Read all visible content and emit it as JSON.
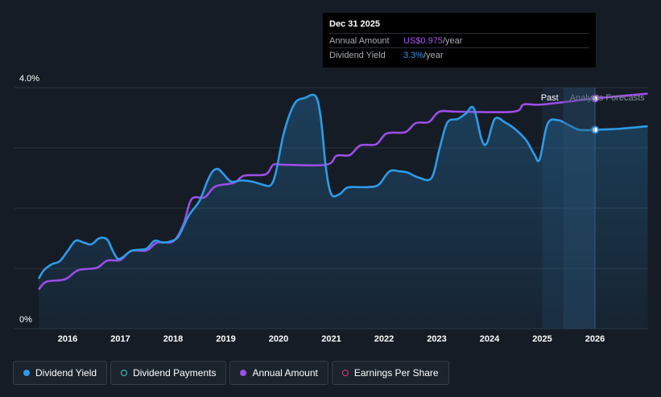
{
  "chart_data": {
    "type": "line",
    "ylim": [
      0,
      4.0
    ],
    "y_ticks": [
      "0%",
      "4.0%"
    ],
    "x_ticks": [
      "2016",
      "2017",
      "2018",
      "2019",
      "2020",
      "2021",
      "2022",
      "2023",
      "2024",
      "2025",
      "2026"
    ],
    "forecast_start": 2025.4,
    "region_labels": {
      "past": "Past",
      "forecast": "Analysts Forecasts"
    },
    "series": [
      {
        "name": "Dividend Yield",
        "color": "#2e9be8",
        "points": [
          [
            2015.45,
            0.83
          ],
          [
            2015.55,
            0.97
          ],
          [
            2015.7,
            1.07
          ],
          [
            2015.85,
            1.12
          ],
          [
            2016.0,
            1.29
          ],
          [
            2016.15,
            1.46
          ],
          [
            2016.3,
            1.43
          ],
          [
            2016.45,
            1.4
          ],
          [
            2016.6,
            1.5
          ],
          [
            2016.75,
            1.48
          ],
          [
            2016.85,
            1.3
          ],
          [
            2016.95,
            1.16
          ],
          [
            2017.05,
            1.19
          ],
          [
            2017.2,
            1.29
          ],
          [
            2017.35,
            1.31
          ],
          [
            2017.5,
            1.33
          ],
          [
            2017.65,
            1.46
          ],
          [
            2017.8,
            1.43
          ],
          [
            2017.95,
            1.45
          ],
          [
            2018.1,
            1.53
          ],
          [
            2018.3,
            1.88
          ],
          [
            2018.5,
            2.12
          ],
          [
            2018.65,
            2.45
          ],
          [
            2018.75,
            2.61
          ],
          [
            2018.85,
            2.65
          ],
          [
            2018.95,
            2.57
          ],
          [
            2019.1,
            2.44
          ],
          [
            2019.3,
            2.46
          ],
          [
            2019.5,
            2.44
          ],
          [
            2019.7,
            2.39
          ],
          [
            2019.85,
            2.38
          ],
          [
            2019.95,
            2.6
          ],
          [
            2020.1,
            3.25
          ],
          [
            2020.3,
            3.73
          ],
          [
            2020.5,
            3.83
          ],
          [
            2020.7,
            3.86
          ],
          [
            2020.8,
            3.5
          ],
          [
            2020.9,
            2.65
          ],
          [
            2021.0,
            2.23
          ],
          [
            2021.15,
            2.23
          ],
          [
            2021.3,
            2.34
          ],
          [
            2021.5,
            2.35
          ],
          [
            2021.7,
            2.35
          ],
          [
            2021.9,
            2.39
          ],
          [
            2022.1,
            2.61
          ],
          [
            2022.3,
            2.61
          ],
          [
            2022.45,
            2.59
          ],
          [
            2022.65,
            2.51
          ],
          [
            2022.9,
            2.5
          ],
          [
            2023.05,
            2.98
          ],
          [
            2023.2,
            3.42
          ],
          [
            2023.4,
            3.48
          ],
          [
            2023.55,
            3.57
          ],
          [
            2023.7,
            3.66
          ],
          [
            2023.85,
            3.14
          ],
          [
            2023.95,
            3.08
          ],
          [
            2024.1,
            3.48
          ],
          [
            2024.3,
            3.42
          ],
          [
            2024.5,
            3.3
          ],
          [
            2024.7,
            3.12
          ],
          [
            2024.85,
            2.89
          ],
          [
            2024.95,
            2.81
          ],
          [
            2025.1,
            3.4
          ],
          [
            2025.3,
            3.46
          ],
          [
            2025.5,
            3.38
          ],
          [
            2025.7,
            3.3
          ],
          [
            2026.0,
            3.3
          ],
          [
            2026.5,
            3.32
          ],
          [
            2027.0,
            3.36
          ]
        ]
      },
      {
        "name": "Annual Amount",
        "color": "#9d4de8",
        "points": [
          [
            2015.45,
            0.65
          ],
          [
            2015.6,
            0.78
          ],
          [
            2015.95,
            0.82
          ],
          [
            2016.2,
            0.97
          ],
          [
            2016.55,
            1.01
          ],
          [
            2016.75,
            1.13
          ],
          [
            2017.0,
            1.14
          ],
          [
            2017.2,
            1.29
          ],
          [
            2017.5,
            1.3
          ],
          [
            2017.7,
            1.43
          ],
          [
            2018.0,
            1.45
          ],
          [
            2018.2,
            1.74
          ],
          [
            2018.35,
            2.15
          ],
          [
            2018.6,
            2.18
          ],
          [
            2018.8,
            2.36
          ],
          [
            2019.15,
            2.42
          ],
          [
            2019.35,
            2.54
          ],
          [
            2019.75,
            2.56
          ],
          [
            2019.9,
            2.72
          ],
          [
            2020.1,
            2.72
          ],
          [
            2020.9,
            2.72
          ],
          [
            2021.1,
            2.87
          ],
          [
            2021.35,
            2.88
          ],
          [
            2021.55,
            3.04
          ],
          [
            2021.85,
            3.06
          ],
          [
            2022.05,
            3.24
          ],
          [
            2022.4,
            3.26
          ],
          [
            2022.6,
            3.41
          ],
          [
            2022.85,
            3.43
          ],
          [
            2023.05,
            3.6
          ],
          [
            2023.4,
            3.6
          ],
          [
            2024.45,
            3.6
          ],
          [
            2024.65,
            3.72
          ],
          [
            2025.0,
            3.72
          ],
          [
            2026.0,
            3.82
          ],
          [
            2027.0,
            3.9
          ]
        ]
      }
    ],
    "highlight": {
      "x": 2026.0,
      "yield": 3.3,
      "amount": 3.82
    }
  },
  "tooltip": {
    "date": "Dec 31 2025",
    "rows": [
      {
        "label": "Annual Amount",
        "value": "US$0.975",
        "unit": "/year",
        "color": "#a855f7"
      },
      {
        "label": "Dividend Yield",
        "value": "3.3%",
        "unit": "/year",
        "color": "#2e9be8"
      }
    ]
  },
  "legend": [
    {
      "label": "Dividend Yield",
      "color": "#2e9be8",
      "filled": true
    },
    {
      "label": "Dividend Payments",
      "color": "#3fd1c7",
      "filled": false
    },
    {
      "label": "Annual Amount",
      "color": "#9d4de8",
      "filled": true
    },
    {
      "label": "Earnings Per Share",
      "color": "#d6387f",
      "filled": false
    }
  ]
}
